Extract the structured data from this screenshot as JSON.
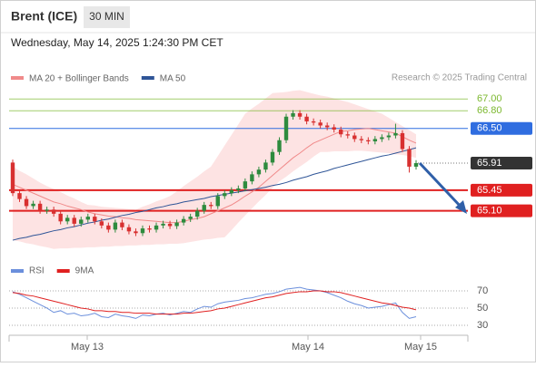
{
  "header": {
    "title": "Brent (ICE)",
    "interval": "30 MIN",
    "date": "Wednesday, May 14, 2025 1:24:30 PM CET",
    "credit": "Research © 2025 Trading Central"
  },
  "chart_data": [
    {
      "type": "candlestick",
      "up_color": "#2e8b3e",
      "down_color": "#d83030",
      "ylim": [
        64.37,
        67.22
      ],
      "open": [
        65.92,
        65.4,
        65.3,
        65.18,
        65.22,
        65.1,
        65.12,
        65.05,
        64.92,
        64.98,
        64.88,
        64.95,
        65.0,
        64.92,
        64.85,
        64.78,
        64.9,
        64.82,
        64.75,
        64.72,
        64.8,
        64.78,
        64.85,
        64.88,
        64.84,
        64.9,
        64.96,
        65.0,
        65.1,
        65.2,
        65.18,
        65.35,
        65.4,
        65.45,
        65.48,
        65.6,
        65.72,
        65.8,
        65.92,
        66.1,
        66.3,
        66.7,
        66.76,
        66.7,
        66.62,
        66.6,
        66.55,
        66.52,
        66.48,
        66.4,
        66.38,
        66.32,
        66.3,
        66.28,
        66.32,
        66.35,
        66.38,
        66.42,
        66.15,
        65.85
      ],
      "high": [
        65.97,
        65.45,
        65.35,
        65.27,
        65.27,
        65.17,
        65.17,
        65.1,
        65.03,
        65.03,
        65.0,
        65.05,
        65.05,
        64.97,
        64.9,
        64.95,
        64.95,
        64.87,
        64.8,
        64.85,
        64.85,
        64.9,
        64.93,
        64.93,
        64.95,
        65.01,
        65.05,
        65.15,
        65.25,
        65.25,
        65.4,
        65.45,
        65.5,
        65.53,
        65.65,
        65.77,
        65.85,
        65.97,
        66.15,
        66.35,
        66.75,
        66.81,
        66.81,
        66.75,
        66.67,
        66.65,
        66.6,
        66.57,
        66.53,
        66.45,
        66.43,
        66.37,
        66.35,
        66.37,
        66.4,
        66.43,
        66.58,
        66.47,
        66.2,
        65.96
      ],
      "low": [
        65.35,
        65.25,
        65.13,
        65.13,
        65.05,
        65.05,
        65.0,
        64.87,
        64.87,
        64.83,
        64.83,
        64.9,
        64.87,
        64.8,
        64.73,
        64.73,
        64.77,
        64.7,
        64.67,
        64.67,
        64.73,
        64.73,
        64.8,
        64.79,
        64.79,
        64.85,
        64.91,
        64.95,
        65.05,
        65.13,
        65.13,
        65.3,
        65.35,
        65.4,
        65.43,
        65.55,
        65.67,
        65.75,
        65.87,
        66.05,
        66.25,
        66.65,
        66.65,
        66.57,
        66.55,
        66.5,
        66.47,
        66.43,
        66.35,
        66.33,
        66.27,
        66.25,
        66.23,
        66.23,
        66.27,
        66.3,
        66.33,
        66.1,
        65.75,
        65.8
      ],
      "close": [
        65.4,
        65.3,
        65.18,
        65.22,
        65.1,
        65.12,
        65.05,
        64.92,
        64.98,
        64.88,
        64.95,
        65.0,
        64.92,
        64.85,
        64.78,
        64.9,
        64.82,
        64.75,
        64.72,
        64.8,
        64.78,
        64.85,
        64.88,
        64.84,
        64.9,
        64.96,
        65.0,
        65.1,
        65.2,
        65.18,
        65.35,
        65.4,
        65.45,
        65.48,
        65.6,
        65.72,
        65.8,
        65.92,
        66.1,
        66.3,
        66.7,
        66.76,
        66.7,
        66.62,
        66.6,
        66.55,
        66.52,
        66.48,
        66.4,
        66.38,
        66.32,
        66.3,
        66.28,
        66.32,
        66.35,
        66.38,
        66.42,
        66.15,
        65.85,
        65.91
      ],
      "series": [
        {
          "name": "MA 20 + Bollinger Bands",
          "color": "#f08a8a",
          "band_color": "#fde3e3",
          "values": [
            65.55,
            65.5,
            65.45,
            65.4,
            65.35,
            65.3,
            65.25,
            65.22,
            65.18,
            65.15,
            65.12,
            65.08,
            65.05,
            65.03,
            65.01,
            65.0,
            64.98,
            64.97,
            64.95,
            64.94,
            64.93,
            64.92,
            64.91,
            64.9,
            64.9,
            64.92,
            64.95,
            64.97,
            65.0,
            65.05,
            65.1,
            65.15,
            65.2,
            65.27,
            65.35,
            65.42,
            65.5,
            65.6,
            65.7,
            65.8,
            65.9,
            66.0,
            66.08,
            66.17,
            66.25,
            66.3,
            66.35,
            66.4,
            66.45,
            66.46,
            66.48,
            66.49,
            66.5,
            66.48,
            66.46,
            66.44,
            66.42,
            66.36,
            66.3,
            66.25
          ],
          "upper": [
            65.85,
            65.78,
            65.72,
            65.65,
            65.58,
            65.52,
            65.47,
            65.42,
            65.36,
            65.31,
            65.25,
            65.2,
            65.19,
            65.17,
            65.16,
            65.15,
            65.14,
            65.13,
            65.12,
            65.17,
            65.21,
            65.26,
            65.3,
            65.35,
            65.43,
            65.52,
            65.6,
            65.68,
            65.77,
            65.85,
            66.03,
            66.21,
            66.39,
            66.57,
            66.75,
            66.84,
            66.92,
            67.01,
            67.1,
            67.11,
            67.12,
            67.14,
            67.15,
            67.12,
            67.09,
            67.06,
            67.04,
            67.01,
            66.98,
            66.95,
            66.91,
            66.87,
            66.83,
            66.79,
            66.75,
            66.68,
            66.61,
            66.54,
            66.47,
            66.4
          ],
          "lower": [
            64.6,
            64.58,
            64.55,
            64.53,
            64.5,
            64.48,
            64.45,
            64.46,
            64.46,
            64.47,
            64.47,
            64.48,
            64.48,
            64.49,
            64.49,
            64.5,
            64.5,
            64.51,
            64.51,
            64.52,
            64.52,
            64.53,
            64.53,
            64.54,
            64.54,
            64.55,
            64.57,
            64.59,
            64.61,
            64.62,
            64.64,
            64.65,
            64.77,
            64.9,
            65.02,
            65.14,
            65.26,
            65.37,
            65.49,
            65.6,
            65.68,
            65.77,
            65.85,
            65.93,
            66.02,
            66.1,
            66.1,
            66.11,
            66.11,
            66.11,
            66.12,
            66.12,
            66.11,
            66.1,
            66.09,
            66.08,
            66.06,
            66.05,
            66.03,
            66.0
          ]
        },
        {
          "name": "MA 50",
          "color": "#2f5597",
          "values": [
            64.6,
            64.63,
            64.65,
            64.68,
            64.7,
            64.73,
            64.76,
            64.78,
            64.81,
            64.83,
            64.86,
            64.89,
            64.91,
            64.94,
            64.96,
            64.99,
            65.02,
            65.04,
            65.07,
            65.09,
            65.12,
            65.15,
            65.17,
            65.2,
            65.22,
            65.25,
            65.27,
            65.29,
            65.31,
            65.34,
            65.36,
            65.38,
            65.4,
            65.42,
            65.44,
            65.46,
            65.48,
            65.5,
            65.53,
            65.55,
            65.58,
            65.62,
            65.65,
            65.68,
            65.72,
            65.75,
            65.78,
            65.82,
            65.85,
            65.88,
            65.91,
            65.94,
            65.97,
            66.0,
            66.03,
            66.05,
            66.08,
            66.11,
            66.14,
            66.17
          ]
        }
      ],
      "levels": [
        {
          "value": 67,
          "label": "67.00",
          "color": "#7cb82f",
          "style": "text",
          "line": "solid"
        },
        {
          "value": 66.8,
          "label": "66.80",
          "color": "#7cb82f",
          "style": "text",
          "line": "solid"
        },
        {
          "value": 66.5,
          "label": "66.50",
          "color": "#2f6de0",
          "style": "box",
          "line": "solid"
        },
        {
          "value": 65.91,
          "label": "65.91",
          "color": "#333333",
          "style": "box",
          "line": "dotted"
        },
        {
          "value": 65.45,
          "label": "65.45",
          "color": "#e02020",
          "style": "box",
          "line": "thick"
        },
        {
          "value": 65.1,
          "label": "65.10",
          "color": "#e02020",
          "style": "box",
          "line": "thick"
        }
      ]
    },
    {
      "type": "line",
      "ylim": [
        18.4,
        92.1
      ],
      "yticks": [
        30,
        50,
        70
      ],
      "grid": true,
      "xlabels": [
        "May 13",
        "May 14",
        "May 15"
      ],
      "series": [
        {
          "name": "RSI",
          "color": "#6b8fdc",
          "values": [
            69,
            66,
            62,
            58,
            54,
            50,
            45,
            47,
            43,
            44,
            41,
            42,
            44,
            40,
            39,
            43,
            41,
            40,
            38,
            42,
            41,
            43,
            44,
            42,
            44,
            46,
            45,
            49,
            52,
            51,
            55,
            57,
            58,
            59,
            61,
            62,
            64,
            66,
            67,
            69,
            72,
            73,
            74,
            72,
            71,
            70,
            68,
            65,
            62,
            58,
            55,
            53,
            50,
            51,
            52,
            54,
            56,
            45,
            38,
            40
          ]
        },
        {
          "name": "9MA",
          "color": "#e02020",
          "values": [
            68,
            67,
            65,
            64,
            62,
            60,
            58,
            56,
            54,
            52,
            50,
            49,
            47,
            47,
            46,
            46,
            45,
            45,
            44,
            44,
            44,
            43,
            43,
            43,
            43,
            44,
            44,
            45,
            46,
            47,
            49,
            50,
            52,
            54,
            56,
            58,
            60,
            62,
            63,
            65,
            67,
            68,
            69,
            69,
            70,
            70,
            69,
            69,
            68,
            66,
            64,
            62,
            60,
            58,
            56,
            55,
            53,
            51,
            50,
            48
          ]
        }
      ]
    }
  ]
}
